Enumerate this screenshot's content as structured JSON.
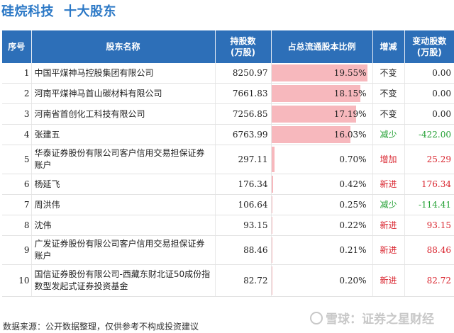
{
  "header": {
    "company": "硅烷科技",
    "subtitle": "十大股东"
  },
  "columns": [
    "序号",
    "股东名称",
    "持股数\n(万股)",
    "占总流通股本比例",
    "增减",
    "变动股数\n(万股)"
  ],
  "rows": [
    {
      "rank": "1",
      "name": "中国平煤神马控股集团有限公司",
      "shares": "8250.97",
      "ratio": "19.55%",
      "ratio_num": 19.55,
      "change": "不变",
      "change_color": "#222222",
      "delta": "0.00",
      "delta_color": "#222222"
    },
    {
      "rank": "2",
      "name": "河南平煤神马首山碳材料有限公司",
      "shares": "7661.83",
      "ratio": "18.15%",
      "ratio_num": 18.15,
      "change": "不变",
      "change_color": "#222222",
      "delta": "0.00",
      "delta_color": "#222222"
    },
    {
      "rank": "3",
      "name": "河南省首创化工科技有限公司",
      "shares": "7256.85",
      "ratio": "17.19%",
      "ratio_num": 17.19,
      "change": "不变",
      "change_color": "#222222",
      "delta": "0.00",
      "delta_color": "#222222"
    },
    {
      "rank": "4",
      "name": "张建五",
      "shares": "6763.99",
      "ratio": "16.03%",
      "ratio_num": 16.03,
      "change": "减少",
      "change_color": "#22a033",
      "delta": "-422.00",
      "delta_color": "#22a033"
    },
    {
      "rank": "5",
      "name": "华泰证券股份有限公司客户信用交易担保证券账户",
      "shares": "297.11",
      "ratio": "0.70%",
      "ratio_num": 0.7,
      "change": "增加",
      "change_color": "#d9232d",
      "delta": "25.29",
      "delta_color": "#d9232d"
    },
    {
      "rank": "6",
      "name": "杨延飞",
      "shares": "176.34",
      "ratio": "0.42%",
      "ratio_num": 0.42,
      "change": "新进",
      "change_color": "#d9232d",
      "delta": "176.34",
      "delta_color": "#d9232d"
    },
    {
      "rank": "7",
      "name": "周洪伟",
      "shares": "106.64",
      "ratio": "0.25%",
      "ratio_num": 0.25,
      "change": "减少",
      "change_color": "#22a033",
      "delta": "-114.41",
      "delta_color": "#22a033"
    },
    {
      "rank": "8",
      "name": "沈伟",
      "shares": "93.15",
      "ratio": "0.22%",
      "ratio_num": 0.22,
      "change": "新进",
      "change_color": "#d9232d",
      "delta": "93.15",
      "delta_color": "#d9232d"
    },
    {
      "rank": "9",
      "name": "广发证券股份有限公司客户信用交易担保证券账户",
      "shares": "88.46",
      "ratio": "0.21%",
      "ratio_num": 0.21,
      "change": "新进",
      "change_color": "#d9232d",
      "delta": "88.46",
      "delta_color": "#d9232d"
    },
    {
      "rank": "10",
      "name": "国信证券股份有限公司-西藏东财北证50成份指数型发起式证券投资基金",
      "shares": "82.72",
      "ratio": "0.20%",
      "ratio_num": 0.2,
      "change": "新进",
      "change_color": "#d9232d",
      "delta": "82.72",
      "delta_color": "#d9232d"
    }
  ],
  "footer": {
    "source": "数据来源：公开数据整理，仅供参考不构成投资建议"
  },
  "watermark": {
    "text": "雪球：证券之星财经"
  },
  "colors": {
    "title": "#2b78c6",
    "header_bg": "#2d6fb8",
    "bar": "#f7b8bd",
    "up": "#d9232d",
    "down": "#22a033"
  }
}
